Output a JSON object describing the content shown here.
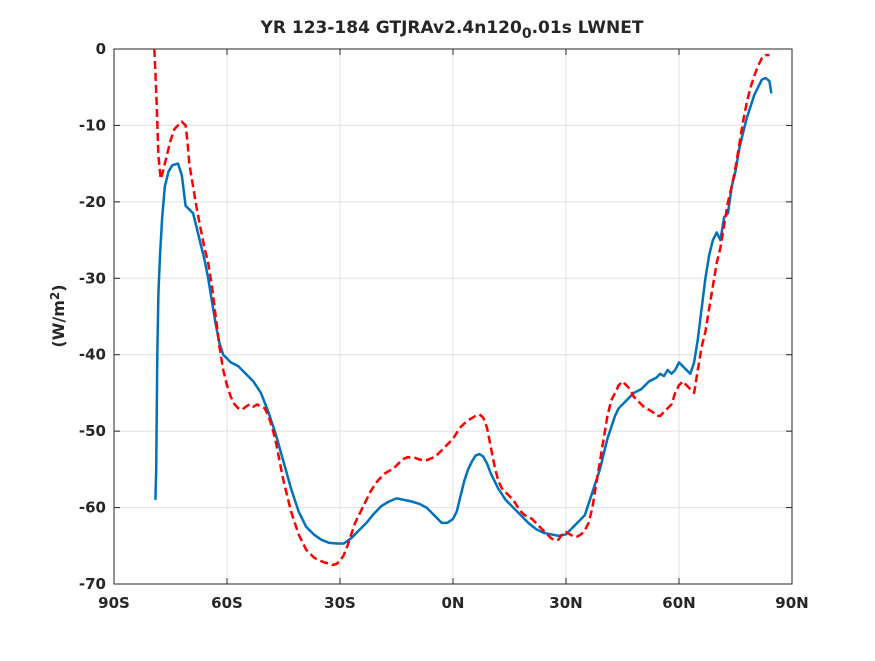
{
  "chart_data": {
    "type": "line",
    "title": {
      "prefix": "YR 123-184 GTJRAv2.4n120",
      "subscript": "0",
      "suffix": ".01s LWNET"
    },
    "xlabel": "",
    "ylabel": {
      "main": "(W/m",
      "superscript": "2",
      "close": ")"
    },
    "xlim": [
      -90,
      90
    ],
    "ylim": [
      -70,
      0
    ],
    "grid": true,
    "x_ticks": [
      {
        "value": -90,
        "label": "90S"
      },
      {
        "value": -60,
        "label": "60S"
      },
      {
        "value": -30,
        "label": "30S"
      },
      {
        "value": 0,
        "label": "0N"
      },
      {
        "value": 30,
        "label": "30N"
      },
      {
        "value": 60,
        "label": "60N"
      },
      {
        "value": 90,
        "label": "90N"
      }
    ],
    "y_ticks": [
      {
        "value": 0,
        "label": "0"
      },
      {
        "value": -10,
        "label": "-10"
      },
      {
        "value": -20,
        "label": "-20"
      },
      {
        "value": -30,
        "label": "-30"
      },
      {
        "value": -40,
        "label": "-40"
      },
      {
        "value": -50,
        "label": "-50"
      },
      {
        "value": -60,
        "label": "-60"
      },
      {
        "value": -70,
        "label": "-70"
      }
    ],
    "series": [
      {
        "color": "#0072BD",
        "style": "solid",
        "points": [
          [
            -79,
            -59
          ],
          [
            -78.8,
            -55
          ],
          [
            -78.5,
            -40
          ],
          [
            -78.2,
            -32
          ],
          [
            -77.8,
            -27
          ],
          [
            -77.2,
            -22
          ],
          [
            -76.5,
            -18
          ],
          [
            -75.5,
            -16
          ],
          [
            -74.5,
            -15.2
          ],
          [
            -73,
            -15
          ],
          [
            -72,
            -16.5
          ],
          [
            -71,
            -20.5
          ],
          [
            -70,
            -21
          ],
          [
            -69,
            -21.5
          ],
          [
            -68,
            -23.5
          ],
          [
            -67,
            -25.5
          ],
          [
            -66,
            -27.5
          ],
          [
            -65,
            -30
          ],
          [
            -64,
            -33
          ],
          [
            -63,
            -36
          ],
          [
            -62,
            -38.5
          ],
          [
            -61,
            -40
          ],
          [
            -60,
            -40.5
          ],
          [
            -59,
            -41
          ],
          [
            -57,
            -41.5
          ],
          [
            -55,
            -42.5
          ],
          [
            -53,
            -43.5
          ],
          [
            -51,
            -45
          ],
          [
            -49,
            -47.5
          ],
          [
            -47,
            -50.5
          ],
          [
            -45,
            -54
          ],
          [
            -43,
            -57.5
          ],
          [
            -41,
            -60.5
          ],
          [
            -39,
            -62.5
          ],
          [
            -37,
            -63.5
          ],
          [
            -35,
            -64.2
          ],
          [
            -33,
            -64.6
          ],
          [
            -31,
            -64.7
          ],
          [
            -29,
            -64.7
          ],
          [
            -27,
            -64
          ],
          [
            -25,
            -63
          ],
          [
            -23,
            -62
          ],
          [
            -21,
            -60.8
          ],
          [
            -19,
            -59.8
          ],
          [
            -17,
            -59.2
          ],
          [
            -15,
            -58.8
          ],
          [
            -13,
            -59
          ],
          [
            -11,
            -59.2
          ],
          [
            -9,
            -59.5
          ],
          [
            -7,
            -60
          ],
          [
            -5,
            -61
          ],
          [
            -3,
            -62
          ],
          [
            -1.5,
            -62
          ],
          [
            0,
            -61.5
          ],
          [
            1,
            -60.5
          ],
          [
            2,
            -58.5
          ],
          [
            3,
            -56.5
          ],
          [
            4,
            -55
          ],
          [
            5,
            -54
          ],
          [
            6,
            -53.2
          ],
          [
            7,
            -53
          ],
          [
            8,
            -53.3
          ],
          [
            9,
            -54.2
          ],
          [
            10,
            -55.5
          ],
          [
            12,
            -57.5
          ],
          [
            14,
            -59
          ],
          [
            16,
            -60
          ],
          [
            18,
            -61
          ],
          [
            20,
            -62
          ],
          [
            22,
            -62.8
          ],
          [
            24,
            -63.3
          ],
          [
            26,
            -63.5
          ],
          [
            28,
            -63.7
          ],
          [
            30,
            -63.5
          ],
          [
            31,
            -63
          ],
          [
            32,
            -62.5
          ],
          [
            33,
            -62
          ],
          [
            35,
            -61
          ],
          [
            37,
            -58
          ],
          [
            39,
            -55
          ],
          [
            41,
            -51
          ],
          [
            43,
            -48
          ],
          [
            44,
            -47
          ],
          [
            46,
            -46
          ],
          [
            48,
            -45
          ],
          [
            50,
            -44.5
          ],
          [
            52,
            -43.5
          ],
          [
            54,
            -43
          ],
          [
            55,
            -42.5
          ],
          [
            56,
            -42.8
          ],
          [
            57,
            -42
          ],
          [
            58,
            -42.5
          ],
          [
            59,
            -42
          ],
          [
            60,
            -41
          ],
          [
            61,
            -41.5
          ],
          [
            62,
            -42
          ],
          [
            63,
            -42.5
          ],
          [
            64,
            -41
          ],
          [
            65,
            -38
          ],
          [
            66,
            -34
          ],
          [
            67,
            -30
          ],
          [
            68,
            -27
          ],
          [
            69,
            -25
          ],
          [
            70,
            -24
          ],
          [
            71,
            -25
          ],
          [
            72,
            -22
          ],
          [
            73,
            -21.5
          ],
          [
            74,
            -18
          ],
          [
            75,
            -16
          ],
          [
            76,
            -13
          ],
          [
            77,
            -11
          ],
          [
            78,
            -9
          ],
          [
            79,
            -7.5
          ],
          [
            80,
            -6
          ],
          [
            81,
            -5
          ],
          [
            82,
            -4
          ],
          [
            83,
            -3.8
          ],
          [
            84,
            -4.2
          ],
          [
            84.5,
            -5.8
          ]
        ]
      },
      {
        "color": "#FF0000",
        "style": "dashed",
        "points": [
          [
            -79.3,
            0
          ],
          [
            -79,
            -3
          ],
          [
            -78.6,
            -8
          ],
          [
            -78.2,
            -14
          ],
          [
            -77.6,
            -17
          ],
          [
            -77,
            -16
          ],
          [
            -76,
            -14
          ],
          [
            -75,
            -12
          ],
          [
            -74,
            -10.5
          ],
          [
            -73,
            -10
          ],
          [
            -72,
            -9.5
          ],
          [
            -71,
            -10
          ],
          [
            -70.5,
            -12
          ],
          [
            -70,
            -15
          ],
          [
            -69,
            -18
          ],
          [
            -68,
            -21
          ],
          [
            -67,
            -23.5
          ],
          [
            -66,
            -26
          ],
          [
            -65,
            -28
          ],
          [
            -64,
            -31
          ],
          [
            -63,
            -35
          ],
          [
            -62,
            -39
          ],
          [
            -61,
            -42
          ],
          [
            -60,
            -44
          ],
          [
            -59,
            -45.5
          ],
          [
            -58,
            -46.5
          ],
          [
            -57,
            -47
          ],
          [
            -56,
            -47.2
          ],
          [
            -55,
            -46.8
          ],
          [
            -54,
            -46.5
          ],
          [
            -53,
            -46.8
          ],
          [
            -52,
            -46.5
          ],
          [
            -51,
            -46.8
          ],
          [
            -50,
            -47
          ],
          [
            -49,
            -48
          ],
          [
            -48,
            -49.5
          ],
          [
            -47,
            -51.5
          ],
          [
            -46,
            -54
          ],
          [
            -45,
            -56.5
          ],
          [
            -44,
            -58.5
          ],
          [
            -43,
            -60.5
          ],
          [
            -42,
            -62
          ],
          [
            -41,
            -63.5
          ],
          [
            -40,
            -64.5
          ],
          [
            -39,
            -65.5
          ],
          [
            -38,
            -66
          ],
          [
            -37,
            -66.5
          ],
          [
            -36,
            -66.8
          ],
          [
            -35,
            -67
          ],
          [
            -34,
            -67.2
          ],
          [
            -33,
            -67.3
          ],
          [
            -32,
            -67.5
          ],
          [
            -31,
            -67.4
          ],
          [
            -30,
            -67
          ],
          [
            -29,
            -66.2
          ],
          [
            -28,
            -65
          ],
          [
            -27,
            -63.5
          ],
          [
            -26,
            -62
          ],
          [
            -25,
            -61
          ],
          [
            -24,
            -60
          ],
          [
            -23,
            -59
          ],
          [
            -22,
            -58
          ],
          [
            -21,
            -57.2
          ],
          [
            -20,
            -56.5
          ],
          [
            -19,
            -56
          ],
          [
            -18,
            -55.5
          ],
          [
            -17,
            -55.2
          ],
          [
            -16,
            -55
          ],
          [
            -15,
            -54.5
          ],
          [
            -14,
            -54
          ],
          [
            -13,
            -53.6
          ],
          [
            -12,
            -53.4
          ],
          [
            -11,
            -53.5
          ],
          [
            -10,
            -53.5
          ],
          [
            -9,
            -53.7
          ],
          [
            -8,
            -53.8
          ],
          [
            -7,
            -53.8
          ],
          [
            -6,
            -53.6
          ],
          [
            -5,
            -53.4
          ],
          [
            -4,
            -53
          ],
          [
            -3,
            -52.5
          ],
          [
            -2,
            -52
          ],
          [
            -1,
            -51.5
          ],
          [
            0,
            -51
          ],
          [
            1,
            -50.2
          ],
          [
            2,
            -49.5
          ],
          [
            3,
            -49
          ],
          [
            4,
            -48.6
          ],
          [
            5,
            -48.3
          ],
          [
            6,
            -48
          ],
          [
            7,
            -47.8
          ],
          [
            8,
            -48.2
          ],
          [
            9,
            -49.5
          ],
          [
            10,
            -52
          ],
          [
            11,
            -54.5
          ],
          [
            12,
            -56.5
          ],
          [
            13,
            -57.5
          ],
          [
            14,
            -58
          ],
          [
            15,
            -58.5
          ],
          [
            16,
            -59
          ],
          [
            17,
            -59.8
          ],
          [
            18,
            -60.5
          ],
          [
            19,
            -61
          ],
          [
            20,
            -61.2
          ],
          [
            21,
            -61.5
          ],
          [
            22,
            -62
          ],
          [
            23,
            -62.5
          ],
          [
            24,
            -63
          ],
          [
            25,
            -63.5
          ],
          [
            26,
            -64
          ],
          [
            27,
            -64.3
          ],
          [
            28,
            -64.2
          ],
          [
            29,
            -63.5
          ],
          [
            30,
            -63.2
          ],
          [
            31,
            -63.5
          ],
          [
            32,
            -63.8
          ],
          [
            33,
            -63.8
          ],
          [
            34,
            -63.5
          ],
          [
            35,
            -63
          ],
          [
            36,
            -62
          ],
          [
            37,
            -60
          ],
          [
            38,
            -57
          ],
          [
            39,
            -54
          ],
          [
            40,
            -51
          ],
          [
            41,
            -48
          ],
          [
            42,
            -46
          ],
          [
            43,
            -45
          ],
          [
            44,
            -44
          ],
          [
            45,
            -43.5
          ],
          [
            46,
            -44
          ],
          [
            47,
            -44.5
          ],
          [
            48,
            -45.5
          ],
          [
            49,
            -46
          ],
          [
            50,
            -46.5
          ],
          [
            51,
            -47
          ],
          [
            52,
            -47.2
          ],
          [
            53,
            -47.5
          ],
          [
            54,
            -48
          ],
          [
            55,
            -48
          ],
          [
            56,
            -47.5
          ],
          [
            57,
            -47
          ],
          [
            58,
            -46.5
          ],
          [
            59,
            -45
          ],
          [
            60,
            -44
          ],
          [
            61,
            -43.5
          ],
          [
            62,
            -44
          ],
          [
            63,
            -44.5
          ],
          [
            64,
            -45
          ],
          [
            65,
            -42
          ],
          [
            66,
            -39
          ],
          [
            67,
            -37
          ],
          [
            68,
            -34
          ],
          [
            69,
            -31
          ],
          [
            70,
            -28
          ],
          [
            71,
            -26
          ],
          [
            72,
            -23
          ],
          [
            73,
            -20
          ],
          [
            74,
            -18
          ],
          [
            75,
            -15.5
          ],
          [
            76,
            -12.5
          ],
          [
            77,
            -9.5
          ],
          [
            78,
            -7
          ],
          [
            79,
            -5
          ],
          [
            80,
            -3.5
          ],
          [
            81,
            -2.2
          ],
          [
            82,
            -1.2
          ],
          [
            83,
            -0.8
          ],
          [
            84,
            -0.8
          ]
        ]
      }
    ]
  }
}
